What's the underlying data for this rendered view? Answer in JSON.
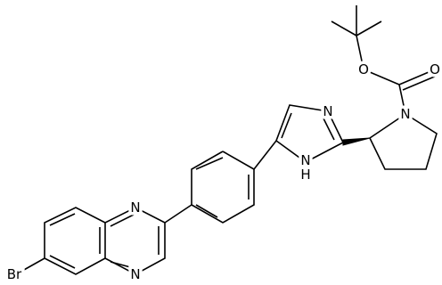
{
  "atoms": {
    "ester_oxygen": "O",
    "carbonyl_oxygen": "O",
    "pyrrolidine_nitrogen": "N",
    "imidazole_nitrogen": "N",
    "imidazole_nh_nitrogen": "N",
    "imidazole_nh_hydrogen": "H",
    "quinoxaline_nitrogen_1": "N",
    "quinoxaline_nitrogen_4": "N",
    "bromine": "Br"
  }
}
